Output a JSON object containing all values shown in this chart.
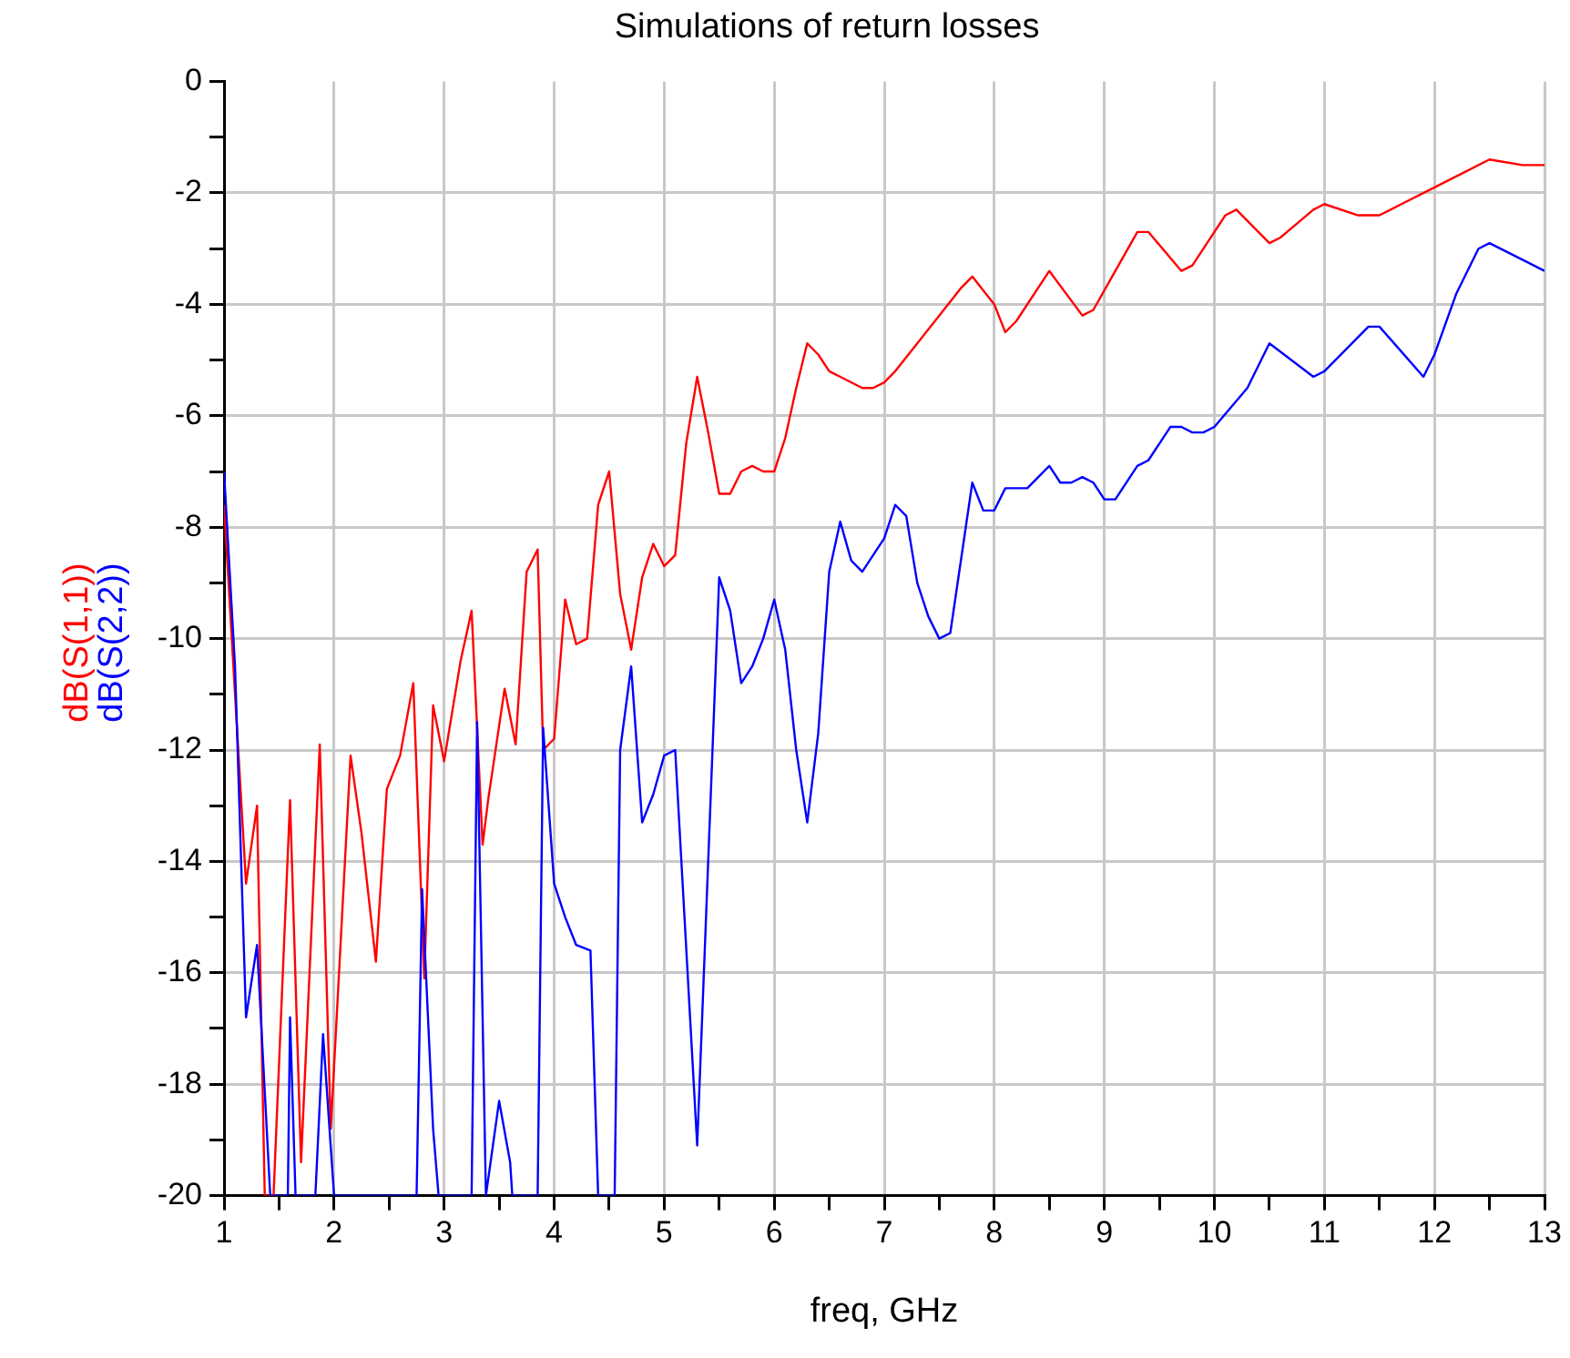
{
  "chart_data": {
    "type": "line",
    "title": "Simulations of return losses",
    "xlabel": "freq, GHz",
    "legend": "left",
    "xlim": [
      1,
      13
    ],
    "xticks": [
      1,
      {
        "value": 1.5,
        "label": null
      },
      2,
      {
        "value": 2.5,
        "label": null
      },
      3,
      {
        "value": 3.5,
        "label": null
      },
      4,
      {
        "value": 4.5,
        "label": null
      },
      5,
      {
        "value": 5.5,
        "label": null
      },
      6,
      {
        "value": 6.5,
        "label": null
      },
      7,
      {
        "value": 7.5,
        "label": null
      },
      8,
      {
        "value": 8.5,
        "label": null
      },
      9,
      {
        "value": 9.5,
        "label": null
      },
      10,
      {
        "value": 10.5,
        "label": null
      },
      11,
      {
        "value": 11.5,
        "label": null
      },
      12,
      {
        "value": 12.5,
        "label": null
      },
      13
    ],
    "ylim": [
      -20,
      0
    ],
    "yticks": [
      -20,
      {
        "value": -19,
        "label": null
      },
      -18,
      {
        "value": -17,
        "label": null
      },
      -16,
      {
        "value": -15,
        "label": null
      },
      -14,
      {
        "value": -13,
        "label": null
      },
      -12,
      {
        "value": -11,
        "label": null
      },
      -10,
      {
        "value": -9,
        "label": null
      },
      -8,
      {
        "value": -7,
        "label": null
      },
      -6,
      {
        "value": -5,
        "label": null
      },
      -4,
      {
        "value": -3,
        "label": null
      },
      -2,
      {
        "value": -1,
        "label": null
      },
      0
    ],
    "grid": true,
    "series": [
      {
        "name": "dB(S(2,2))",
        "color": "#0000ff",
        "x": [
          1.0,
          1.1,
          1.2,
          1.3,
          1.42,
          1.58,
          1.6,
          1.65,
          1.83,
          1.9,
          2.0,
          2.75,
          2.8,
          2.9,
          2.95,
          3.25,
          3.3,
          3.38,
          3.5,
          3.6,
          3.62,
          3.85,
          3.9,
          4.0,
          4.1,
          4.2,
          4.33,
          4.4,
          4.55,
          4.6,
          4.7,
          4.8,
          4.9,
          5.0,
          5.1,
          5.3,
          5.5,
          5.6,
          5.7,
          5.8,
          5.9,
          6.0,
          6.1,
          6.2,
          6.3,
          6.4,
          6.5,
          6.6,
          6.7,
          6.8,
          7.0,
          7.1,
          7.2,
          7.3,
          7.4,
          7.5,
          7.6,
          7.8,
          7.9,
          8.0,
          8.1,
          8.3,
          8.5,
          8.6,
          8.7,
          8.8,
          8.9,
          9.0,
          9.1,
          9.3,
          9.4,
          9.6,
          9.7,
          9.8,
          9.9,
          10.0,
          10.3,
          10.5,
          10.9,
          11.0,
          11.4,
          11.5,
          11.9,
          12.0,
          12.2,
          12.4,
          12.5,
          12.8,
          13.0
        ],
        "values": [
          -7.0,
          -10.5,
          -16.8,
          -15.5,
          -20,
          -20,
          -16.8,
          -20,
          -20,
          -17.1,
          -20,
          -20,
          -14.5,
          -18.8,
          -20,
          -20,
          -11.5,
          -20,
          -18.3,
          -19.4,
          -20,
          -20,
          -11.6,
          -14.4,
          -15.0,
          -15.5,
          -15.6,
          -20,
          -20,
          -12.0,
          -10.5,
          -13.3,
          -12.8,
          -12.1,
          -12.0,
          -19.1,
          -8.9,
          -9.5,
          -10.8,
          -10.5,
          -10.0,
          -9.3,
          -10.2,
          -12.0,
          -13.3,
          -11.7,
          -8.8,
          -7.9,
          -8.6,
          -8.8,
          -8.2,
          -7.6,
          -7.8,
          -9.0,
          -9.6,
          -10.0,
          -9.9,
          -7.2,
          -7.7,
          -7.7,
          -7.3,
          -7.3,
          -6.9,
          -7.2,
          -7.2,
          -7.1,
          -7.2,
          -7.5,
          -7.5,
          -6.9,
          -6.8,
          -6.2,
          -6.2,
          -6.3,
          -6.3,
          -6.2,
          -5.5,
          -4.7,
          -5.3,
          -5.2,
          -4.4,
          -4.4,
          -5.3,
          -4.9,
          -3.8,
          -3.0,
          -2.9,
          -3.2,
          -3.4
        ]
      },
      {
        "name": "dB(S(1,1))",
        "color": "#ff0000",
        "x": [
          1.0,
          1.2,
          1.3,
          1.37,
          1.45,
          1.6,
          1.7,
          1.87,
          1.97,
          2.15,
          2.25,
          2.38,
          2.48,
          2.6,
          2.72,
          2.82,
          2.9,
          3.0,
          3.15,
          3.25,
          3.35,
          3.4,
          3.55,
          3.65,
          3.75,
          3.85,
          3.9,
          4.0,
          4.1,
          4.2,
          4.3,
          4.4,
          4.5,
          4.6,
          4.7,
          4.8,
          4.9,
          5.0,
          5.1,
          5.2,
          5.3,
          5.4,
          5.5,
          5.6,
          5.7,
          5.8,
          5.9,
          6.0,
          6.1,
          6.2,
          6.3,
          6.4,
          6.5,
          6.6,
          6.8,
          6.9,
          7.0,
          7.1,
          7.3,
          7.5,
          7.7,
          7.8,
          8.0,
          8.1,
          8.2,
          8.5,
          8.8,
          8.9,
          9.1,
          9.3,
          9.4,
          9.7,
          9.8,
          10.1,
          10.2,
          10.5,
          10.6,
          10.9,
          11.0,
          11.3,
          11.5,
          11.7,
          12.0,
          12.2,
          12.5,
          12.8,
          13.0
        ],
        "values": [
          -7.6,
          -14.4,
          -13.0,
          -20,
          -20,
          -12.9,
          -19.4,
          -11.9,
          -18.8,
          -12.1,
          -13.5,
          -15.8,
          -12.7,
          -12.1,
          -10.8,
          -16.1,
          -11.2,
          -12.2,
          -10.4,
          -9.5,
          -13.7,
          -12.9,
          -10.9,
          -11.9,
          -8.8,
          -8.4,
          -12.0,
          -11.8,
          -9.3,
          -10.1,
          -10.0,
          -7.6,
          -7.0,
          -9.2,
          -10.2,
          -8.9,
          -8.3,
          -8.7,
          -8.5,
          -6.5,
          -5.3,
          -6.3,
          -7.4,
          -7.4,
          -7.0,
          -6.9,
          -7.0,
          -7.0,
          -6.4,
          -5.5,
          -4.7,
          -4.9,
          -5.2,
          -5.3,
          -5.5,
          -5.5,
          -5.4,
          -5.2,
          -4.7,
          -4.2,
          -3.7,
          -3.5,
          -4.0,
          -4.5,
          -4.3,
          -3.4,
          -4.2,
          -4.1,
          -3.4,
          -2.7,
          -2.7,
          -3.4,
          -3.3,
          -2.4,
          -2.3,
          -2.9,
          -2.8,
          -2.3,
          -2.2,
          -2.4,
          -2.4,
          -2.2,
          -1.9,
          -1.7,
          -1.4,
          -1.5,
          -1.5
        ]
      }
    ]
  }
}
